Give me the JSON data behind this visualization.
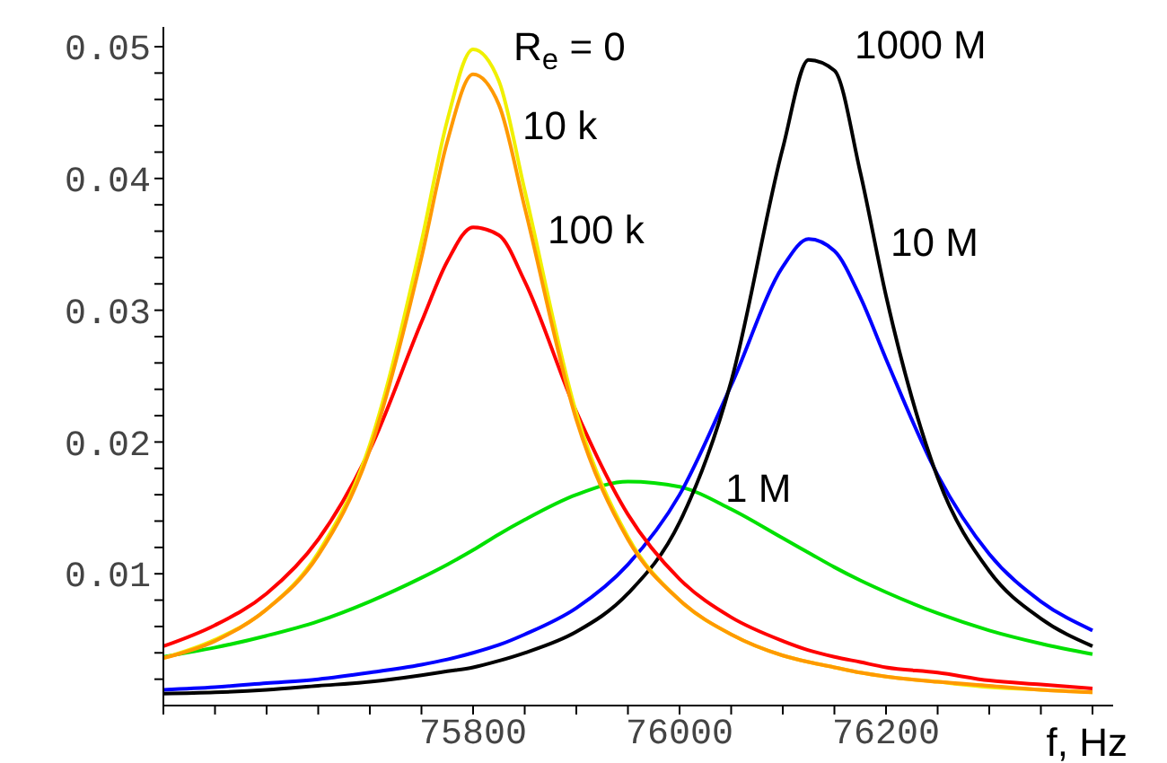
{
  "chart_data": {
    "type": "line",
    "xlabel": "f, Hz",
    "x": [
      75500,
      75550,
      75600,
      75650,
      75700,
      75750,
      75775,
      75800,
      75825,
      75850,
      75900,
      75950,
      76000,
      76050,
      76100,
      76125,
      76150,
      76175,
      76200,
      76250,
      76300,
      76350,
      76400
    ],
    "series": [
      {
        "color": "#00e000",
        "values": [
          0.0037,
          0.0044,
          0.0053,
          0.0064,
          0.0079,
          0.0097,
          0.0107,
          0.0118,
          0.013,
          0.0141,
          0.016,
          0.017,
          0.0166,
          0.0149,
          0.0127,
          0.0116,
          0.0105,
          0.0095,
          0.0086,
          0.007,
          0.0057,
          0.0047,
          0.0039
        ]
      },
      {
        "color": "#0000ff",
        "values": [
          0.0012,
          0.0014,
          0.0017,
          0.002,
          0.0025,
          0.0031,
          0.0035,
          0.004,
          0.0046,
          0.0054,
          0.0074,
          0.0107,
          0.016,
          0.0243,
          0.0333,
          0.0354,
          0.0345,
          0.031,
          0.0263,
          0.0175,
          0.0115,
          0.0079,
          0.0057
        ]
      },
      {
        "color": "#000000",
        "values": [
          0.0009,
          0.001,
          0.0012,
          0.0015,
          0.0018,
          0.0023,
          0.0026,
          0.0029,
          0.0034,
          0.004,
          0.0056,
          0.0085,
          0.0139,
          0.0246,
          0.0423,
          0.049,
          0.0482,
          0.0405,
          0.0311,
          0.0173,
          0.0102,
          0.0066,
          0.0045
        ]
      },
      {
        "color": "#ff0000",
        "values": [
          0.0045,
          0.0061,
          0.0085,
          0.0126,
          0.0194,
          0.0291,
          0.0337,
          0.0363,
          0.0357,
          0.0322,
          0.0223,
          0.0145,
          0.0096,
          0.0067,
          0.0049,
          0.0042,
          0.0037,
          0.0033,
          0.0029,
          0.0025,
          0.0019,
          0.0016,
          0.0013
        ]
      },
      {
        "color": "#f0f000",
        "values": [
          0.0036,
          0.005,
          0.0073,
          0.0116,
          0.0198,
          0.0352,
          0.0444,
          0.0498,
          0.0474,
          0.0391,
          0.0222,
          0.0128,
          0.008,
          0.0054,
          0.0038,
          0.0033,
          0.0029,
          0.0025,
          0.0022,
          0.0018,
          0.0014,
          0.0012,
          0.001
        ]
      },
      {
        "color": "#ff9900",
        "values": [
          0.0036,
          0.0049,
          0.0073,
          0.0114,
          0.0194,
          0.034,
          0.0428,
          0.0479,
          0.0456,
          0.0378,
          0.0217,
          0.0126,
          0.008,
          0.0054,
          0.0038,
          0.0033,
          0.0029,
          0.0025,
          0.0022,
          0.0018,
          0.0015,
          0.0012,
          0.001
        ]
      }
    ],
    "annotations": [
      "R$_{e}$ = 0",
      "10 k",
      "100 k",
      "1000 M",
      "10 M",
      "1 M"
    ],
    "xlim": [
      75500,
      76420
    ],
    "ylim": [
      0,
      0.0515
    ],
    "xticks": [
      {
        "value": 75500,
        "label": null
      },
      {
        "value": 75550,
        "label": null
      },
      {
        "value": 75600,
        "label": null
      },
      {
        "value": 75650,
        "label": null
      },
      {
        "value": 75700,
        "label": null
      },
      {
        "value": 75750,
        "label": null
      },
      75800,
      {
        "value": 75850,
        "label": null
      },
      {
        "value": 75900,
        "label": null
      },
      {
        "value": 75950,
        "label": null
      },
      76000,
      {
        "value": 76050,
        "label": null
      },
      {
        "value": 76100,
        "label": null
      },
      {
        "value": 76150,
        "label": null
      },
      76200,
      {
        "value": 76250,
        "label": null
      },
      {
        "value": 76300,
        "label": null
      },
      {
        "value": 76350,
        "label": null
      },
      {
        "value": 76400,
        "label": null
      }
    ],
    "yticks": [
      {
        "value": 0.002,
        "label": null
      },
      {
        "value": 0.004,
        "label": null
      },
      {
        "value": 0.006,
        "label": null
      },
      {
        "value": 0.008,
        "label": null
      },
      0.01,
      {
        "value": 0.012,
        "label": null
      },
      {
        "value": 0.014,
        "label": null
      },
      {
        "value": 0.016,
        "label": null
      },
      {
        "value": 0.018,
        "label": null
      },
      0.02,
      {
        "value": 0.022,
        "label": null
      },
      {
        "value": 0.024,
        "label": null
      },
      {
        "value": 0.026,
        "label": null
      },
      {
        "value": 0.028,
        "label": null
      },
      0.03,
      {
        "value": 0.032,
        "label": null
      },
      {
        "value": 0.034,
        "label": null
      },
      {
        "value": 0.036,
        "label": null
      },
      {
        "value": 0.038,
        "label": null
      },
      0.04,
      {
        "value": 0.042,
        "label": null
      },
      {
        "value": 0.044,
        "label": null
      },
      {
        "value": 0.046,
        "label": null
      },
      {
        "value": 0.048,
        "label": null
      },
      0.05
    ],
    "grid": false,
    "marker": "none",
    "line_style": "solid"
  }
}
